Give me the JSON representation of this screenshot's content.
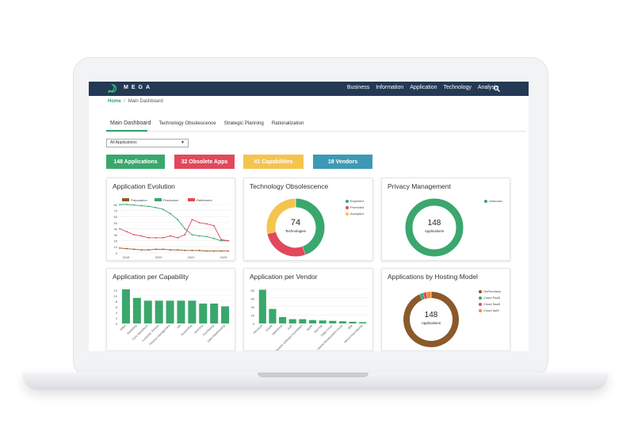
{
  "brand": "MEGA",
  "nav": {
    "items": [
      "Business",
      "Information",
      "Application",
      "Technology",
      "Analysis"
    ]
  },
  "breadcrumb": {
    "home": "Home",
    "separator": "/",
    "current": "Main Dashboard"
  },
  "tabs": [
    "Main Dashboard",
    "Technology Obsolescence",
    "Strategic Planning",
    "Rationalization"
  ],
  "filter": {
    "value": "All Applications"
  },
  "kpis": [
    {
      "label": "148 Applications",
      "color": "#3aa76d"
    },
    {
      "label": "32 Obsolete Apps",
      "color": "#e1485b"
    },
    {
      "label": "41 Capabilities",
      "color": "#f4c44e"
    },
    {
      "label": "18 Vendors",
      "color": "#3e99b5"
    }
  ],
  "cards": {
    "evolution": {
      "title": "Application Evolution",
      "legend": [
        "Preparation",
        "Production",
        "Retirement"
      ],
      "y_ticks": [
        "80",
        "70",
        "60",
        "50",
        "40",
        "30",
        "20",
        "10",
        "0"
      ],
      "x_ticks": [
        "2018",
        "2020",
        "2022",
        "2024"
      ]
    },
    "obsolescence": {
      "title": "Technology Obsolescence",
      "center_value": "74",
      "center_label": "Technologies",
      "legend": [
        "Expected",
        "Promoted",
        "Accepted"
      ]
    },
    "privacy": {
      "title": "Privacy Management",
      "center_value": "148",
      "center_label": "Applications",
      "legend": [
        "Unknown"
      ]
    },
    "capability": {
      "title": "Application per Capability",
      "y_ticks": [
        "12",
        "10",
        "8",
        "6",
        "4",
        "2",
        "0"
      ]
    },
    "vendor": {
      "title": "Application per Vendor",
      "y_ticks": [
        "80",
        "60",
        "40",
        "20",
        "0"
      ]
    },
    "hosting": {
      "title": "Applications by Hosting Model",
      "center_value": "148",
      "center_label": "Applications",
      "legend": [
        "OnPremises",
        "Cloud PaaS",
        "Cloud SaaS",
        "Cloud IaaS"
      ]
    }
  },
  "chart_data": [
    {
      "type": "line",
      "title": "Application Evolution",
      "x": [
        2017,
        2017.5,
        2018,
        2018.5,
        2019,
        2019.5,
        2020,
        2020.5,
        2021,
        2021.5,
        2022,
        2022.5,
        2023,
        2023.5,
        2024,
        2024.5
      ],
      "series": [
        {
          "name": "Preparation",
          "color": "#8a5a2b",
          "values": [
            8,
            7,
            6,
            5,
            5,
            6,
            6,
            5,
            5,
            4,
            4,
            4,
            3,
            3,
            3,
            3
          ]
        },
        {
          "name": "Production",
          "color": "#3aa76d",
          "values": [
            80,
            80,
            79,
            78,
            77,
            75,
            72,
            65,
            55,
            40,
            30,
            28,
            27,
            24,
            20,
            20
          ]
        },
        {
          "name": "Retirement",
          "color": "#e1485b",
          "values": [
            40,
            35,
            30,
            28,
            25,
            25,
            25,
            28,
            25,
            30,
            55,
            50,
            48,
            45,
            22,
            20
          ]
        }
      ],
      "xlim": [
        2017,
        2024.6
      ],
      "ylim": [
        0,
        80
      ],
      "grid": true,
      "legend": "top"
    },
    {
      "type": "pie",
      "title": "Technology Obsolescence",
      "labels": [
        "Expected",
        "Promoted",
        "Accepted"
      ],
      "values": [
        33,
        20,
        21
      ],
      "colors": [
        "#3aa76d",
        "#e1485b",
        "#f4c44e"
      ],
      "legend": "right"
    },
    {
      "type": "pie",
      "title": "Privacy Management",
      "labels": [
        "Unknown"
      ],
      "values": [
        148
      ],
      "colors": [
        "#3aa76d"
      ],
      "legend": "right"
    },
    {
      "type": "bar",
      "title": "Application per Capability",
      "categories": [
        "Sales",
        "Marketing",
        "Core Operations",
        "Customer Service",
        "Finance Management",
        "HR",
        "Accounting",
        "Sourcing",
        "Purchasing",
        "Data Warehousing"
      ],
      "values": [
        12,
        9,
        8,
        8,
        8,
        8,
        8,
        7,
        7,
        6
      ],
      "color": "#3aa76d",
      "ylim": [
        0,
        12
      ],
      "grid": true
    },
    {
      "type": "bar",
      "title": "Application per Vendor",
      "categories": [
        "Microsoft",
        "Oracle",
        "Salesforce",
        "SAP",
        "Apache Software Foundation",
        "Apple",
        "Red Hat",
        "Sage Group",
        "PostgreSQL Global Development Group",
        "IBM",
        "MEGA International"
      ],
      "values": [
        79,
        34,
        15,
        10,
        10,
        8,
        7,
        6,
        5,
        4,
        3
      ],
      "color": "#3aa76d",
      "ylim": [
        0,
        80
      ],
      "grid": true
    },
    {
      "type": "pie",
      "title": "Applications by Hosting Model",
      "labels": [
        "OnPremises",
        "Cloud PaaS",
        "Cloud SaaS",
        "Cloud IaaS"
      ],
      "values": [
        138,
        3,
        3,
        4
      ],
      "colors": [
        "#8a5a2b",
        "#3aa76d",
        "#e1485b",
        "#f28c28"
      ],
      "legend": "right"
    }
  ]
}
